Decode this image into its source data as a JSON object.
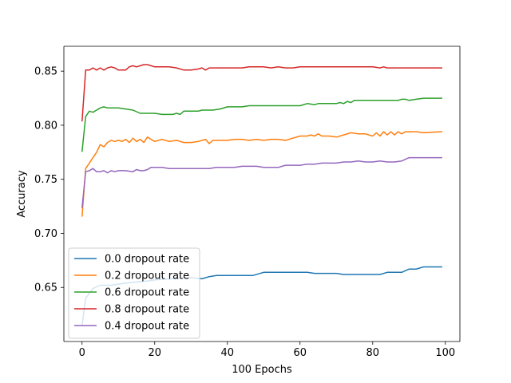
{
  "chart_data": {
    "type": "line",
    "title": "",
    "xlabel": "100 Epochs",
    "ylabel": "Accuracy",
    "xlim": [
      -5,
      104
    ],
    "ylim": [
      0.6,
      0.873
    ],
    "xticks": [
      0,
      20,
      40,
      60,
      80,
      100
    ],
    "yticks": [
      0.65,
      0.7,
      0.75,
      0.8,
      0.85
    ],
    "ytick_labels": [
      "0.65",
      "0.70",
      "0.75",
      "0.80",
      "0.85"
    ],
    "grid": false,
    "legend_position": "lower-left",
    "series": [
      {
        "name": "0.0 dropout rate",
        "color": "#1f77b4",
        "points": [
          [
            0,
            0.615
          ],
          [
            1,
            0.64
          ],
          [
            3,
            0.649
          ],
          [
            5,
            0.652
          ],
          [
            8,
            0.652
          ],
          [
            12,
            0.654
          ],
          [
            15,
            0.655
          ],
          [
            18,
            0.656
          ],
          [
            20,
            0.657
          ],
          [
            25,
            0.658
          ],
          [
            30,
            0.659
          ],
          [
            33,
            0.658
          ],
          [
            35,
            0.66
          ],
          [
            37,
            0.661
          ],
          [
            40,
            0.661
          ],
          [
            45,
            0.661
          ],
          [
            47,
            0.661
          ],
          [
            50,
            0.664
          ],
          [
            55,
            0.664
          ],
          [
            60,
            0.664
          ],
          [
            62,
            0.664
          ],
          [
            64,
            0.663
          ],
          [
            68,
            0.663
          ],
          [
            70,
            0.663
          ],
          [
            72,
            0.662
          ],
          [
            75,
            0.662
          ],
          [
            80,
            0.662
          ],
          [
            82,
            0.662
          ],
          [
            84,
            0.664
          ],
          [
            88,
            0.664
          ],
          [
            90,
            0.667
          ],
          [
            92,
            0.667
          ],
          [
            94,
            0.669
          ],
          [
            99,
            0.669
          ]
        ]
      },
      {
        "name": "0.2 dropout rate",
        "color": "#ff7f0e",
        "points": [
          [
            0,
            0.716
          ],
          [
            1,
            0.76
          ],
          [
            2,
            0.765
          ],
          [
            3,
            0.77
          ],
          [
            4,
            0.775
          ],
          [
            5,
            0.782
          ],
          [
            6,
            0.78
          ],
          [
            7,
            0.784
          ],
          [
            8,
            0.786
          ],
          [
            9,
            0.785
          ],
          [
            10,
            0.786
          ],
          [
            11,
            0.785
          ],
          [
            12,
            0.787
          ],
          [
            13,
            0.784
          ],
          [
            14,
            0.788
          ],
          [
            15,
            0.785
          ],
          [
            16,
            0.787
          ],
          [
            17,
            0.784
          ],
          [
            18,
            0.789
          ],
          [
            19,
            0.787
          ],
          [
            20,
            0.785
          ],
          [
            22,
            0.787
          ],
          [
            24,
            0.785
          ],
          [
            26,
            0.786
          ],
          [
            28,
            0.784
          ],
          [
            30,
            0.784
          ],
          [
            32,
            0.785
          ],
          [
            34,
            0.787
          ],
          [
            35,
            0.783
          ],
          [
            36,
            0.786
          ],
          [
            38,
            0.786
          ],
          [
            40,
            0.786
          ],
          [
            42,
            0.787
          ],
          [
            44,
            0.787
          ],
          [
            46,
            0.786
          ],
          [
            48,
            0.787
          ],
          [
            50,
            0.786
          ],
          [
            52,
            0.787
          ],
          [
            54,
            0.787
          ],
          [
            56,
            0.786
          ],
          [
            58,
            0.788
          ],
          [
            60,
            0.79
          ],
          [
            62,
            0.79
          ],
          [
            63,
            0.791
          ],
          [
            64,
            0.79
          ],
          [
            65,
            0.792
          ],
          [
            66,
            0.79
          ],
          [
            68,
            0.79
          ],
          [
            70,
            0.789
          ],
          [
            72,
            0.791
          ],
          [
            74,
            0.793
          ],
          [
            76,
            0.792
          ],
          [
            78,
            0.792
          ],
          [
            80,
            0.79
          ],
          [
            81,
            0.793
          ],
          [
            82,
            0.79
          ],
          [
            83,
            0.794
          ],
          [
            84,
            0.791
          ],
          [
            85,
            0.794
          ],
          [
            86,
            0.791
          ],
          [
            87,
            0.794
          ],
          [
            88,
            0.792
          ],
          [
            89,
            0.794
          ],
          [
            92,
            0.794
          ],
          [
            94,
            0.793
          ],
          [
            99,
            0.794
          ]
        ]
      },
      {
        "name": "0.6 dropout rate",
        "color": "#2ca02c",
        "points": [
          [
            0,
            0.776
          ],
          [
            1,
            0.808
          ],
          [
            2,
            0.813
          ],
          [
            3,
            0.812
          ],
          [
            4,
            0.814
          ],
          [
            5,
            0.816
          ],
          [
            6,
            0.817
          ],
          [
            7,
            0.816
          ],
          [
            10,
            0.816
          ],
          [
            12,
            0.815
          ],
          [
            14,
            0.814
          ],
          [
            16,
            0.811
          ],
          [
            20,
            0.811
          ],
          [
            22,
            0.81
          ],
          [
            25,
            0.81
          ],
          [
            26,
            0.811
          ],
          [
            27,
            0.81
          ],
          [
            28,
            0.813
          ],
          [
            32,
            0.813
          ],
          [
            33,
            0.814
          ],
          [
            36,
            0.814
          ],
          [
            38,
            0.815
          ],
          [
            40,
            0.817
          ],
          [
            44,
            0.817
          ],
          [
            46,
            0.818
          ],
          [
            55,
            0.818
          ],
          [
            60,
            0.818
          ],
          [
            62,
            0.82
          ],
          [
            64,
            0.819
          ],
          [
            65,
            0.82
          ],
          [
            70,
            0.82
          ],
          [
            71,
            0.821
          ],
          [
            72,
            0.82
          ],
          [
            73,
            0.822
          ],
          [
            74,
            0.821
          ],
          [
            75,
            0.823
          ],
          [
            80,
            0.823
          ],
          [
            85,
            0.823
          ],
          [
            87,
            0.823
          ],
          [
            88,
            0.824
          ],
          [
            89,
            0.824
          ],
          [
            90,
            0.823
          ],
          [
            92,
            0.824
          ],
          [
            94,
            0.825
          ],
          [
            99,
            0.825
          ]
        ]
      },
      {
        "name": "0.8 dropout rate",
        "color": "#d62728",
        "points": [
          [
            0,
            0.804
          ],
          [
            1,
            0.851
          ],
          [
            2,
            0.851
          ],
          [
            3,
            0.853
          ],
          [
            4,
            0.851
          ],
          [
            5,
            0.853
          ],
          [
            6,
            0.851
          ],
          [
            7,
            0.853
          ],
          [
            8,
            0.854
          ],
          [
            9,
            0.853
          ],
          [
            10,
            0.851
          ],
          [
            11,
            0.851
          ],
          [
            12,
            0.851
          ],
          [
            13,
            0.854
          ],
          [
            14,
            0.855
          ],
          [
            15,
            0.854
          ],
          [
            16,
            0.855
          ],
          [
            17,
            0.856
          ],
          [
            18,
            0.856
          ],
          [
            19,
            0.855
          ],
          [
            20,
            0.854
          ],
          [
            24,
            0.854
          ],
          [
            26,
            0.853
          ],
          [
            28,
            0.851
          ],
          [
            30,
            0.851
          ],
          [
            32,
            0.852
          ],
          [
            33,
            0.853
          ],
          [
            34,
            0.851
          ],
          [
            35,
            0.853
          ],
          [
            36,
            0.853
          ],
          [
            40,
            0.853
          ],
          [
            44,
            0.853
          ],
          [
            46,
            0.854
          ],
          [
            48,
            0.854
          ],
          [
            50,
            0.854
          ],
          [
            52,
            0.853
          ],
          [
            54,
            0.854
          ],
          [
            56,
            0.853
          ],
          [
            58,
            0.853
          ],
          [
            60,
            0.854
          ],
          [
            64,
            0.854
          ],
          [
            70,
            0.854
          ],
          [
            75,
            0.854
          ],
          [
            80,
            0.854
          ],
          [
            82,
            0.853
          ],
          [
            83,
            0.854
          ],
          [
            84,
            0.853
          ],
          [
            90,
            0.853
          ],
          [
            95,
            0.853
          ],
          [
            99,
            0.853
          ]
        ]
      },
      {
        "name": "0.4 dropout rate",
        "color": "#9467bd",
        "points": [
          [
            0,
            0.724
          ],
          [
            1,
            0.757
          ],
          [
            2,
            0.758
          ],
          [
            3,
            0.76
          ],
          [
            4,
            0.757
          ],
          [
            5,
            0.757
          ],
          [
            6,
            0.758
          ],
          [
            7,
            0.756
          ],
          [
            8,
            0.758
          ],
          [
            9,
            0.757
          ],
          [
            10,
            0.758
          ],
          [
            12,
            0.758
          ],
          [
            14,
            0.757
          ],
          [
            15,
            0.759
          ],
          [
            16,
            0.758
          ],
          [
            17,
            0.758
          ],
          [
            18,
            0.759
          ],
          [
            19,
            0.761
          ],
          [
            22,
            0.761
          ],
          [
            24,
            0.76
          ],
          [
            30,
            0.76
          ],
          [
            35,
            0.76
          ],
          [
            37,
            0.761
          ],
          [
            40,
            0.761
          ],
          [
            42,
            0.761
          ],
          [
            44,
            0.762
          ],
          [
            46,
            0.762
          ],
          [
            48,
            0.762
          ],
          [
            50,
            0.761
          ],
          [
            52,
            0.761
          ],
          [
            54,
            0.761
          ],
          [
            56,
            0.763
          ],
          [
            60,
            0.763
          ],
          [
            62,
            0.764
          ],
          [
            64,
            0.764
          ],
          [
            66,
            0.765
          ],
          [
            68,
            0.765
          ],
          [
            70,
            0.765
          ],
          [
            72,
            0.766
          ],
          [
            74,
            0.766
          ],
          [
            76,
            0.767
          ],
          [
            78,
            0.766
          ],
          [
            80,
            0.766
          ],
          [
            82,
            0.767
          ],
          [
            84,
            0.766
          ],
          [
            86,
            0.766
          ],
          [
            88,
            0.767
          ],
          [
            90,
            0.77
          ],
          [
            95,
            0.77
          ],
          [
            99,
            0.77
          ]
        ]
      }
    ]
  }
}
